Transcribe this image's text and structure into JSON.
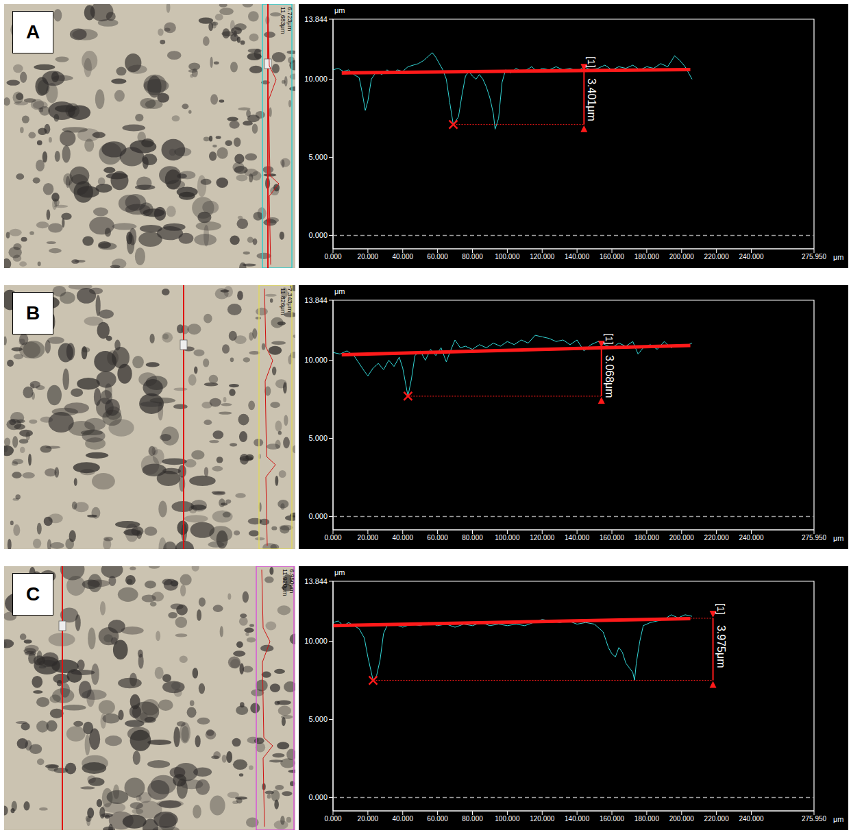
{
  "chart_data": [
    {
      "panel": "A",
      "type": "line",
      "image_labels": [
        "11.683μm",
        "6.723μm"
      ],
      "x_label": "μm",
      "y_label": "μm",
      "xlim": [
        0,
        275.95
      ],
      "ylim": [
        -0.86,
        13.844
      ],
      "xticks": [
        {
          "value": 0,
          "label": "0.000"
        },
        {
          "value": 20,
          "label": "20.000"
        },
        {
          "value": 40,
          "label": "40.000"
        },
        {
          "value": 60,
          "label": "60.000"
        },
        {
          "value": 80,
          "label": "80.000"
        },
        {
          "value": 100,
          "label": "100.000"
        },
        {
          "value": 120,
          "label": "120.000"
        },
        {
          "value": 140,
          "label": "140.000"
        },
        {
          "value": 160,
          "label": "160.000"
        },
        {
          "value": 180,
          "label": "180.000"
        },
        {
          "value": 200,
          "label": "200.000"
        },
        {
          "value": 220,
          "label": "220.000"
        },
        {
          "value": 240,
          "label": "240.000"
        },
        {
          "value": 275.95,
          "label": "275.950"
        }
      ],
      "yticks": [
        {
          "value": 0,
          "label": "0.000"
        },
        {
          "value": 5,
          "label": "5.000"
        },
        {
          "value": 10,
          "label": "10.000"
        },
        13.844
      ],
      "baseline": 0,
      "grid": false,
      "series": [
        {
          "color": "#33d6d6",
          "x": [
            0,
            3,
            6,
            9,
            12,
            15,
            17,
            18.5,
            20,
            22,
            25,
            28,
            31,
            34,
            37,
            40,
            43,
            46,
            49,
            52,
            55,
            57,
            59,
            61,
            63,
            65,
            67,
            69,
            72,
            74,
            76,
            78,
            80,
            82,
            84,
            86,
            88,
            90,
            92,
            93,
            95,
            97,
            99,
            102,
            105,
            108,
            111,
            114,
            117,
            120,
            124,
            128,
            132,
            136,
            140,
            144,
            148,
            152,
            156,
            160,
            164,
            168,
            172,
            176,
            180,
            184,
            188,
            192,
            196,
            199,
            202,
            206
          ],
          "values": [
            10.6,
            10.7,
            10.5,
            10.6,
            10.3,
            10.1,
            9.0,
            8.0,
            8.6,
            10.0,
            10.5,
            10.3,
            10.6,
            10.4,
            10.6,
            10.5,
            10.8,
            10.9,
            11.0,
            11.2,
            11.5,
            11.7,
            11.4,
            11.0,
            10.6,
            10.0,
            8.5,
            7.1,
            7.6,
            9.0,
            10.2,
            10.5,
            10.2,
            10.0,
            10.3,
            10.0,
            9.5,
            8.8,
            7.8,
            6.8,
            7.5,
            9.8,
            10.6,
            10.4,
            10.7,
            10.5,
            10.6,
            10.8,
            10.5,
            10.7,
            10.6,
            10.8,
            10.6,
            10.7,
            10.5,
            10.8,
            10.6,
            10.7,
            10.9,
            10.6,
            10.8,
            10.7,
            10.9,
            10.6,
            10.8,
            10.7,
            11.0,
            10.8,
            11.5,
            11.2,
            10.8,
            10.0
          ]
        },
        {
          "color": "#ff1a1a",
          "x": [
            5,
            205
          ],
          "values": [
            10.4,
            10.62
          ]
        }
      ],
      "measurement": {
        "marker_label": "[1]",
        "label": "3.401μm",
        "value": 3.401,
        "x": 144,
        "from_x": 69,
        "level": 7.1,
        "color": "#ff1a1a"
      }
    },
    {
      "panel": "B",
      "type": "line",
      "image_labels": [
        "11.826μm",
        "7.343μm"
      ],
      "x_label": "μm",
      "y_label": "μm",
      "xlim": [
        0,
        275.95
      ],
      "ylim": [
        -0.86,
        13.844
      ],
      "xticks": [
        {
          "value": 0,
          "label": "0.000"
        },
        {
          "value": 20,
          "label": "20.000"
        },
        {
          "value": 40,
          "label": "40.000"
        },
        {
          "value": 60,
          "label": "60.000"
        },
        {
          "value": 80,
          "label": "80.000"
        },
        {
          "value": 100,
          "label": "100.000"
        },
        {
          "value": 120,
          "label": "120.000"
        },
        {
          "value": 140,
          "label": "140.000"
        },
        {
          "value": 160,
          "label": "160.000"
        },
        {
          "value": 180,
          "label": "180.000"
        },
        {
          "value": 200,
          "label": "200.000"
        },
        {
          "value": 220,
          "label": "220.000"
        },
        {
          "value": 240,
          "label": "240.000"
        },
        {
          "value": 275.95,
          "label": "275.950"
        }
      ],
      "yticks": [
        {
          "value": 0,
          "label": "0.000"
        },
        {
          "value": 5,
          "label": "5.000"
        },
        {
          "value": 10,
          "label": "10.000"
        },
        13.844
      ],
      "baseline": 0,
      "grid": false,
      "series": [
        {
          "color": "#33d6d6",
          "x": [
            0,
            4,
            8,
            12,
            15,
            18,
            20,
            23,
            26,
            29,
            32,
            35,
            38,
            40,
            42,
            43,
            45,
            47,
            50,
            53,
            56,
            59,
            62,
            65,
            67,
            70,
            73,
            76,
            80,
            84,
            88,
            92,
            96,
            100,
            104,
            108,
            112,
            116,
            120,
            124,
            128,
            132,
            136,
            140,
            144,
            148,
            152,
            156,
            160,
            164,
            168,
            172,
            175,
            178,
            182,
            186,
            190,
            194,
            198,
            202,
            206
          ],
          "values": [
            10.5,
            10.4,
            10.6,
            10.3,
            9.8,
            9.3,
            9.0,
            9.5,
            9.8,
            9.4,
            10.0,
            9.6,
            10.2,
            9.5,
            8.3,
            7.7,
            8.8,
            10.3,
            10.6,
            10.0,
            10.7,
            10.3,
            10.8,
            9.9,
            10.5,
            11.3,
            10.8,
            10.9,
            10.7,
            11.0,
            10.8,
            11.1,
            10.9,
            11.2,
            11.0,
            11.3,
            11.1,
            11.6,
            11.5,
            11.4,
            11.2,
            11.3,
            11.0,
            11.3,
            10.6,
            11.0,
            11.2,
            11.0,
            10.8,
            11.1,
            10.9,
            11.2,
            10.4,
            10.8,
            11.0,
            10.7,
            11.2,
            10.8,
            11.0,
            10.9,
            11.1
          ]
        },
        {
          "color": "#ff1a1a",
          "x": [
            5,
            205
          ],
          "values": [
            10.35,
            10.95
          ]
        }
      ],
      "measurement": {
        "marker_label": "[1]",
        "label": "3.068μm",
        "value": 3.068,
        "x": 154,
        "from_x": 43,
        "level": 7.7,
        "color": "#ff1a1a"
      }
    },
    {
      "panel": "C",
      "type": "line",
      "image_labels": [
        "11.920μm",
        "6.950μm"
      ],
      "x_label": "μm",
      "y_label": "μm",
      "xlim": [
        0,
        275.95
      ],
      "ylim": [
        -0.86,
        13.844
      ],
      "xticks": [
        {
          "value": 0,
          "label": "0.000"
        },
        {
          "value": 20,
          "label": "20.000"
        },
        {
          "value": 40,
          "label": "40.000"
        },
        {
          "value": 60,
          "label": "60.000"
        },
        {
          "value": 80,
          "label": "80.000"
        },
        {
          "value": 100,
          "label": "100.000"
        },
        {
          "value": 120,
          "label": "120.000"
        },
        {
          "value": 140,
          "label": "140.000"
        },
        {
          "value": 160,
          "label": "160.000"
        },
        {
          "value": 180,
          "label": "180.000"
        },
        {
          "value": 200,
          "label": "200.000"
        },
        {
          "value": 220,
          "label": "220.000"
        },
        {
          "value": 240,
          "label": "240.000"
        },
        {
          "value": 275.95,
          "label": "275.950"
        }
      ],
      "yticks": [
        {
          "value": 0,
          "label": "0.000"
        },
        {
          "value": 5,
          "label": "5.000"
        },
        {
          "value": 10,
          "label": "10.000"
        },
        13.844
      ],
      "baseline": 0,
      "grid": false,
      "series": [
        {
          "color": "#33d6d6",
          "x": [
            0,
            3,
            6,
            9,
            12,
            15,
            18,
            20,
            22,
            23,
            25,
            27,
            29,
            31,
            35,
            40,
            45,
            50,
            55,
            60,
            65,
            70,
            75,
            80,
            85,
            90,
            95,
            100,
            105,
            110,
            115,
            120,
            125,
            130,
            135,
            140,
            145,
            150,
            155,
            158,
            160,
            162,
            164,
            166,
            168,
            170,
            172,
            173,
            174,
            176,
            178,
            182,
            186,
            190,
            194,
            198,
            202,
            206
          ],
          "values": [
            11.2,
            11.3,
            11.0,
            11.2,
            11.0,
            10.8,
            10.2,
            9.0,
            8.0,
            7.5,
            7.8,
            8.8,
            10.5,
            11.0,
            11.1,
            10.9,
            11.1,
            11.0,
            11.2,
            11.0,
            11.1,
            10.9,
            11.1,
            11.0,
            11.2,
            11.0,
            11.1,
            11.0,
            11.1,
            11.0,
            11.2,
            11.4,
            11.3,
            11.2,
            11.3,
            11.1,
            11.2,
            11.1,
            10.6,
            9.6,
            9.2,
            9.0,
            9.6,
            9.3,
            8.6,
            8.3,
            8.0,
            7.5,
            8.6,
            10.0,
            11.0,
            11.2,
            11.3,
            11.4,
            11.7,
            11.5,
            11.7,
            11.6
          ]
        },
        {
          "color": "#ff1a1a",
          "x": [
            0,
            205
          ],
          "values": [
            11.0,
            11.45
          ]
        }
      ],
      "measurement": {
        "marker_label": "[1]",
        "label": "3.975μm",
        "value": 3.975,
        "x": 218,
        "from_x": 23,
        "level": 7.5,
        "color": "#ff1a1a"
      }
    }
  ]
}
